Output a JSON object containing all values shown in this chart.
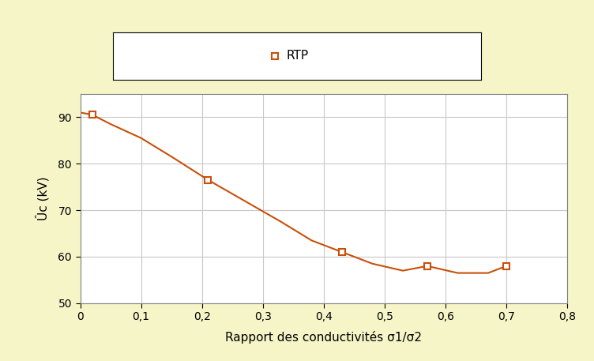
{
  "x_data": [
    0.02,
    0.21,
    0.43,
    0.57,
    0.7
  ],
  "y_data": [
    90.5,
    76.5,
    61.0,
    58.0,
    58.0
  ],
  "x_smooth": [
    0.0,
    0.02,
    0.05,
    0.1,
    0.15,
    0.21,
    0.27,
    0.33,
    0.38,
    0.43,
    0.48,
    0.53,
    0.57,
    0.62,
    0.65,
    0.67,
    0.7
  ],
  "y_smooth": [
    91.0,
    90.5,
    88.5,
    85.5,
    81.5,
    76.5,
    72.0,
    67.5,
    63.5,
    61.0,
    58.5,
    57.0,
    58.0,
    56.5,
    56.5,
    56.5,
    58.0
  ],
  "marker_color": "#C8500A",
  "line_color": "#C8500A",
  "marker_size": 6,
  "ylabel": "Ûc (kV)",
  "xlabel": "Rapport des conductivités σ1/σ2",
  "legend_label": "RTP",
  "xlim": [
    0,
    0.8
  ],
  "ylim": [
    50,
    95
  ],
  "xticks": [
    0,
    0.1,
    0.2,
    0.3,
    0.4,
    0.5,
    0.6,
    0.7,
    0.8
  ],
  "yticks": [
    50,
    60,
    70,
    80,
    90
  ],
  "background_outer": "#F5F5C8",
  "background_inner": "#FFFFFF",
  "grid_color": "#C8C8C8",
  "legend_box_color": "#FFFFFF",
  "spine_color": "#808080",
  "tick_label_fontsize": 10,
  "axis_label_fontsize": 11,
  "legend_fontsize": 11
}
